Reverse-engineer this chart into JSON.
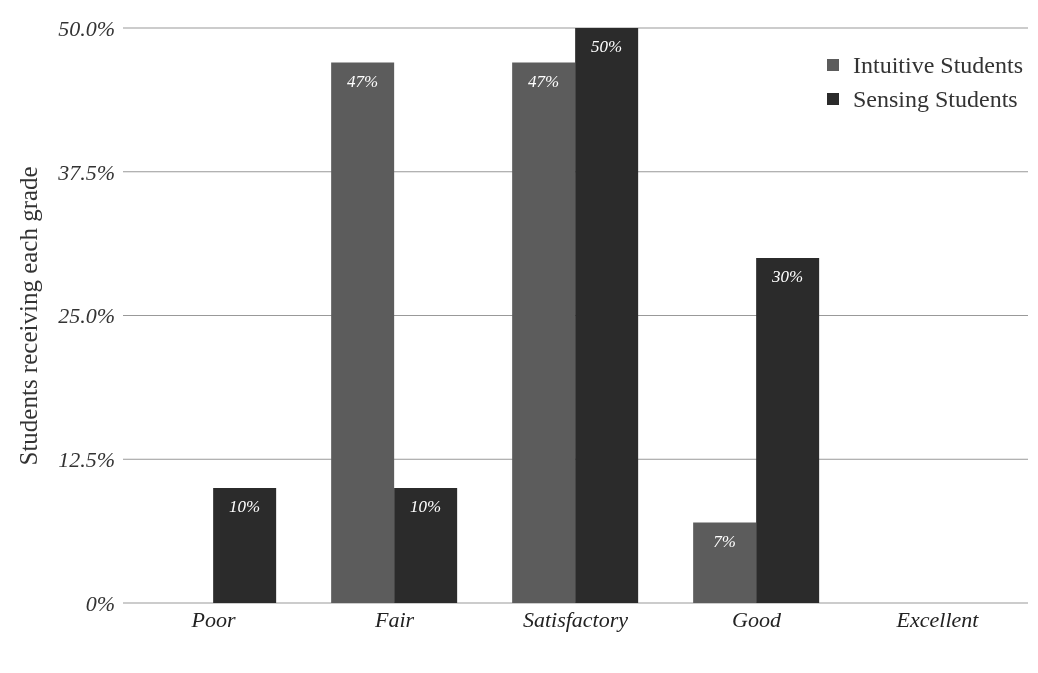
{
  "chart_data": {
    "type": "bar",
    "ylabel": "Students receiving each grade",
    "categories": [
      "Poor",
      "Fair",
      "Satisfactory",
      "Good",
      "Excellent"
    ],
    "series": [
      {
        "name": "Intuitive Students",
        "color": "#5c5c5c",
        "values": [
          0,
          47,
          47,
          7,
          0
        ],
        "value_labels": [
          null,
          "47%",
          "47%",
          "7%",
          null
        ]
      },
      {
        "name": "Sensing Students",
        "color": "#2b2b2b",
        "values": [
          10,
          10,
          50,
          30,
          0
        ],
        "value_labels": [
          "10%",
          "10%",
          "50%",
          "30%",
          null
        ]
      }
    ],
    "ylim": [
      0,
      50
    ],
    "yticks": [
      {
        "value": 0,
        "label": "0%"
      },
      {
        "value": 12.5,
        "label": "12.5%"
      },
      {
        "value": 25,
        "label": "25.0%"
      },
      {
        "value": 37.5,
        "label": "37.5%"
      },
      {
        "value": 50,
        "label": "50.0%"
      }
    ],
    "grid": "y",
    "legend": "top right"
  }
}
